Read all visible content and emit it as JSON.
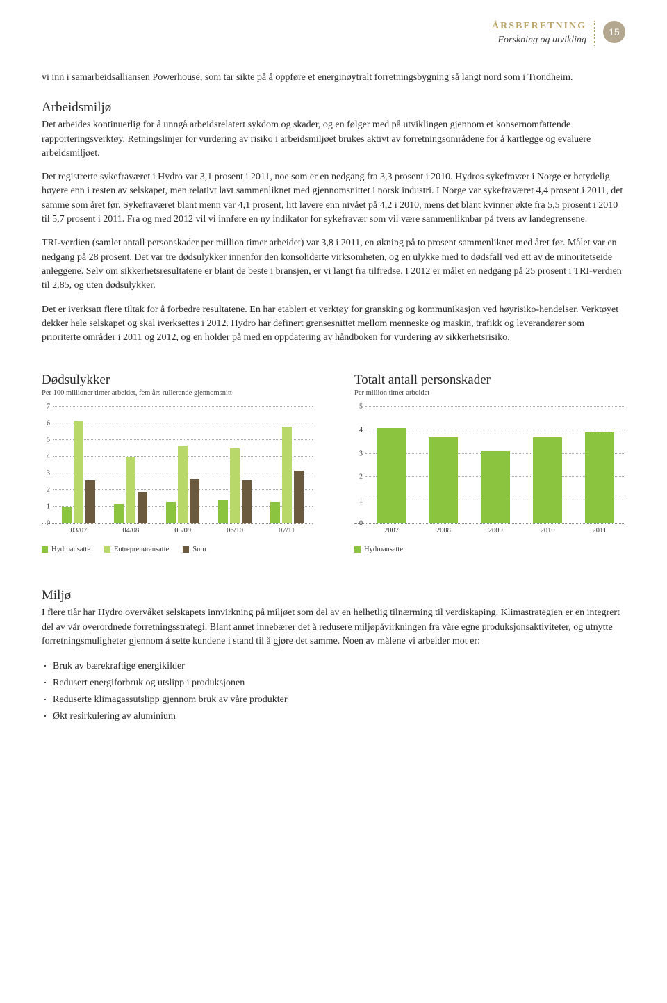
{
  "header": {
    "title": "ÅRSBERETNING",
    "subtitle": "Forskning og utvikling",
    "page_number": "15"
  },
  "intro_continuation": "vi inn i samarbeidsalliansen Powerhouse, som tar sikte på å oppføre et energinøytralt forretningsbygning så langt nord som i Trondheim.",
  "section_arbeidsmiljo": {
    "heading": "Arbeidsmiljø",
    "p1": "Det arbeides kontinuerlig for å unngå arbeidsrelatert sykdom og skader, og en følger med på utviklingen gjennom et konsernomfattende rapporteringsverktøy. Retningslinjer for vurdering av risiko i arbeidsmiljøet brukes aktivt av forretningsområdene for å kartlegge og evaluere arbeidsmiljøet.",
    "p2": "Det registrerte sykefraværet i Hydro var 3,1 prosent i 2011, noe som er en nedgang fra 3,3 prosent i 2010. Hydros sykefravær i Norge er betydelig høyere enn i resten av selskapet, men relativt lavt sammenliknet med gjennomsnittet i norsk industri. I Norge var sykefraværet 4,4 prosent i 2011, det samme som året før. Sykefraværet blant menn var 4,1 prosent, litt lavere enn nivået på 4,2 i 2010, mens det blant kvinner økte fra 5,5 prosent i 2010 til 5,7 prosent i 2011. Fra og med 2012 vil vi innføre en ny indikator for sykefravær som vil være sammenliknbar på tvers av landegrensene.",
    "p3": "TRI-verdien (samlet antall personskader per million timer arbeidet) var 3,8 i 2011, en økning på to prosent sammenliknet med året før. Målet var en nedgang på 28 prosent. Det var tre dødsulykker innenfor den konsoliderte virksomheten, og en ulykke med to dødsfall ved ett av de minoritetseide anleggene. Selv om sikkerhetsresultatene er blant de beste i bransjen, er vi langt fra tilfredse. I 2012 er målet en nedgang på 25 prosent i TRI-verdien til 2,85, og uten dødsulykker.",
    "p4": "Det er iverksatt flere tiltak for å forbedre resultatene. En har etablert et verktøy for gransking og kommunikasjon ved høyrisiko-hendelser. Verktøyet dekker hele selskapet og skal iverksettes i 2012. Hydro har definert grensesnittet mellom menneske og maskin, trafikk og leverandører som prioriterte områder i 2011 og 2012, og en holder på med en oppdatering av håndboken for vurdering av sikkerhetsrisiko."
  },
  "chart_left": {
    "title": "Dødsulykker",
    "subtitle": "Per 100 millioner timer arbeidet, fem års rullerende gjennomsnitt",
    "ymax": 7,
    "yticks": [
      0,
      1,
      2,
      3,
      4,
      5,
      6,
      7
    ],
    "categories": [
      "03/07",
      "04/08",
      "05/09",
      "06/10",
      "07/11"
    ],
    "series": [
      {
        "name": "Hydroansatte",
        "color": "#8bc53f",
        "values": [
          1.0,
          1.2,
          1.3,
          1.4,
          1.3
        ]
      },
      {
        "name": "Entreprenøransatte",
        "color": "#b8d96a",
        "values": [
          6.2,
          4.0,
          4.7,
          4.5,
          5.8
        ]
      },
      {
        "name": "Sum",
        "color": "#6b5a3e",
        "values": [
          2.6,
          1.9,
          2.7,
          2.6,
          3.2
        ]
      }
    ],
    "grid_color": "#aaaaaa",
    "background": "#ffffff"
  },
  "chart_right": {
    "title": "Totalt antall personskader",
    "subtitle": "Per million timer arbeidet",
    "ymax": 5,
    "yticks": [
      0,
      1,
      2,
      3,
      4,
      5
    ],
    "categories": [
      "2007",
      "2008",
      "2009",
      "2010",
      "2011"
    ],
    "series": [
      {
        "name": "Hydroansatte",
        "color": "#8bc53f",
        "values": [
          4.1,
          3.7,
          3.1,
          3.7,
          3.9
        ]
      }
    ],
    "grid_color": "#aaaaaa",
    "background": "#ffffff"
  },
  "section_miljo": {
    "heading": "Miljø",
    "p1": "I flere tiår har Hydro overvåket selskapets innvirkning på miljøet som del av en helhetlig tilnærming til verdiskaping. Klimastrategien er en integrert del av vår overordnede forretningsstrategi. Blant annet innebærer det å redusere miljøpåvirkningen fra våre egne produksjonsaktiviteter, og utnytte forretningsmuligheter gjennom å sette kundene i stand til å gjøre det samme. Noen av målene vi arbeider mot er:",
    "bullets": [
      "Bruk av bærekraftige energikilder",
      "Redusert energiforbruk og utslipp i produksjonen",
      "Reduserte klimagassutslipp gjennom bruk av våre produkter",
      "Økt resirkulering av aluminium"
    ]
  }
}
